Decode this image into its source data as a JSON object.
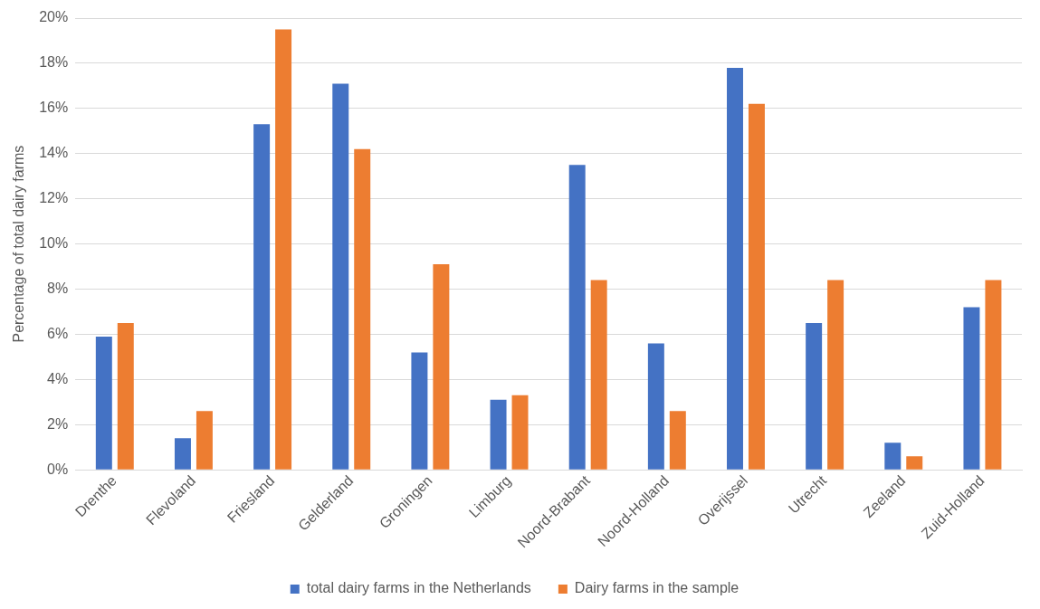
{
  "chart_data": {
    "type": "bar",
    "ylabel": "Percentage of total dairy farms",
    "categories": [
      "Drenthe",
      "Flevoland",
      "Friesland",
      "Gelderland",
      "Groningen",
      "Limburg",
      "Noord-Brabant",
      "Noord-Holland",
      "Overijssel",
      "Utrecht",
      "Zeeland",
      "Zuid-Holland"
    ],
    "series": [
      {
        "name": "total dairy farms in the Netherlands",
        "color": "#4472c4",
        "values": [
          5.9,
          1.4,
          15.3,
          17.1,
          5.2,
          3.1,
          13.5,
          5.6,
          17.8,
          6.5,
          1.2,
          7.2
        ]
      },
      {
        "name": "Dairy farms in the sample",
        "color": "#ed7d31",
        "values": [
          6.5,
          2.6,
          19.5,
          14.2,
          9.1,
          3.3,
          8.4,
          2.6,
          16.2,
          8.4,
          0.6,
          8.4
        ]
      }
    ],
    "ylim": [
      0,
      20
    ],
    "yticks": [
      {
        "value": 0,
        "label": "0%"
      },
      {
        "value": 2,
        "label": "2%"
      },
      {
        "value": 4,
        "label": "4%"
      },
      {
        "value": 6,
        "label": "6%"
      },
      {
        "value": 8,
        "label": "8%"
      },
      {
        "value": 10,
        "label": "10%"
      },
      {
        "value": 12,
        "label": "12%"
      },
      {
        "value": 14,
        "label": "14%"
      },
      {
        "value": 16,
        "label": "16%"
      },
      {
        "value": 18,
        "label": "18%"
      },
      {
        "value": 20,
        "label": "20%"
      }
    ],
    "grid": "y",
    "legend": "bottom"
  }
}
